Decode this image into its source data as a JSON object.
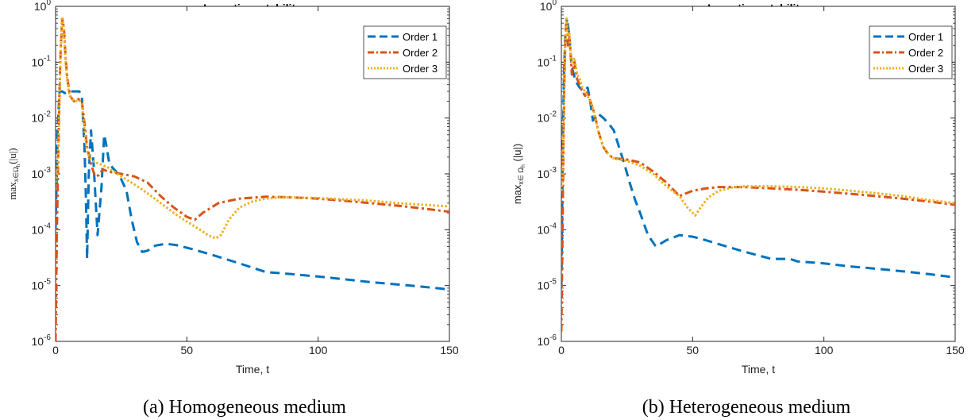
{
  "chart_data": [
    {
      "type": "line",
      "title": "Long time stability",
      "xlabel": "Time, t",
      "ylabel": "max_{x∈Ω_h}(|u|)",
      "xlim": [
        0,
        150
      ],
      "ylim": [
        1e-06,
        1
      ],
      "yscale": "log",
      "xticks": [
        "0",
        "50",
        "100",
        "150"
      ],
      "yticks": [
        "10-6",
        "10-5",
        "10-4",
        "10-3",
        "10-2",
        "10-1",
        "100"
      ],
      "legend": "top-right",
      "caption": "(a) Homogeneous medium",
      "series": [
        {
          "name": "Order 1",
          "color": "#0072BD",
          "style": "dashed",
          "x": [
            0,
            0.8,
            1.5,
            2.5,
            3.5,
            5,
            7,
            9,
            10,
            11,
            11.5,
            12,
            12.6,
            13.5,
            14.5,
            16,
            17.5,
            18.5,
            19.2,
            20.5,
            23,
            25,
            27,
            29,
            31,
            33,
            35,
            38,
            42,
            46,
            52,
            60,
            70,
            80,
            90,
            100,
            110,
            120,
            130,
            140,
            150
          ],
          "y": [
            0.0001,
            0.006,
            0.03,
            0.03,
            0.028,
            0.03,
            0.03,
            0.03,
            0.025,
            0.003,
            0.0005,
            3e-05,
            0.0009,
            0.006,
            0.0015,
            8e-05,
            0.0006,
            0.005,
            0.0035,
            0.0015,
            0.0011,
            0.0008,
            0.0005,
            0.00015,
            6e-05,
            4e-05,
            4.2e-05,
            5.2e-05,
            5.6e-05,
            5.3e-05,
            4.5e-05,
            3.5e-05,
            2.5e-05,
            1.75e-05,
            1.6e-05,
            1.45e-05,
            1.3e-05,
            1.15e-05,
            1.05e-05,
            9.5e-06,
            8.5e-06
          ]
        },
        {
          "name": "Order 2",
          "color": "#D95319",
          "style": "dashdot",
          "x": [
            0,
            0.5,
            1,
            1.6,
            2,
            2.6,
            3.2,
            3.8,
            4.5,
            5.5,
            7,
            8.5,
            10,
            11,
            12,
            13.5,
            15,
            16.5,
            18,
            20,
            25,
            30,
            35,
            40,
            45,
            50,
            53,
            56,
            62,
            70,
            80,
            90,
            100,
            110,
            120,
            130,
            140,
            150
          ],
          "y": [
            1e-06,
            0.0001,
            0.002,
            0.05,
            0.2,
            0.6,
            0.4,
            0.12,
            0.05,
            0.025,
            0.02,
            0.022,
            0.02,
            0.008,
            0.003,
            0.0015,
            0.0009,
            0.00095,
            0.0012,
            0.0011,
            0.001,
            0.0009,
            0.0007,
            0.0004,
            0.00025,
            0.00017,
            0.00015,
            0.0002,
            0.0003,
            0.00036,
            0.00039,
            0.00038,
            0.00036,
            0.00033,
            0.0003,
            0.00027,
            0.00024,
            0.00021
          ]
        },
        {
          "name": "Order 3",
          "color": "#EDB120",
          "style": "dotted",
          "x": [
            0,
            0.6,
            1.2,
            1.8,
            2.4,
            3,
            3.6,
            4.2,
            5,
            6,
            7.5,
            9,
            10,
            11,
            12,
            13.5,
            15,
            17,
            20,
            25,
            30,
            35,
            40,
            45,
            50,
            55,
            58,
            61,
            63,
            66,
            70,
            75,
            80,
            85,
            90,
            100,
            110,
            120,
            130,
            140,
            150
          ],
          "y": [
            0.0007,
            0.001,
            0.005,
            0.1,
            0.6,
            0.5,
            0.15,
            0.06,
            0.03,
            0.022,
            0.02,
            0.021,
            0.018,
            0.006,
            0.0025,
            0.0018,
            0.0016,
            0.0015,
            0.0013,
            0.0009,
            0.00065,
            0.00045,
            0.0003,
            0.0002,
            0.00014,
            0.0001,
            8e-05,
            7e-05,
            8e-05,
            0.00015,
            0.00025,
            0.00032,
            0.00036,
            0.00038,
            0.00038,
            0.00037,
            0.00035,
            0.00033,
            0.0003,
            0.00028,
            0.00026
          ]
        }
      ]
    },
    {
      "type": "line",
      "title": "Long time stability",
      "xlabel": "Time, t",
      "ylabel": "max_{x∈Ω_h}(|u|)",
      "xlim": [
        0,
        150
      ],
      "ylim": [
        1e-06,
        1
      ],
      "yscale": "log",
      "xticks": [
        "0",
        "50",
        "100",
        "150"
      ],
      "yticks": [
        "10-6",
        "10-5",
        "10-4",
        "10-3",
        "10-2",
        "10-1",
        "100"
      ],
      "legend": "top-right",
      "caption": "(b) Heterogeneous medium",
      "series": [
        {
          "name": "Order 1",
          "color": "#0072BD",
          "style": "dashed",
          "x": [
            0,
            0.5,
            1,
            1.5,
            2.2,
            3,
            4,
            5.5,
            7,
            8.5,
            10,
            11,
            12,
            14,
            16,
            18,
            20,
            22,
            24,
            26,
            28,
            30,
            33,
            36,
            40,
            45,
            50,
            55,
            60,
            70,
            80,
            85,
            87,
            90,
            100,
            110,
            120,
            130,
            140,
            150
          ],
          "y": [
            1e-05,
            0.002,
            0.06,
            0.3,
            0.6,
            0.3,
            0.08,
            0.045,
            0.035,
            0.03,
            0.035,
            0.02,
            0.009,
            0.012,
            0.01,
            0.008,
            0.006,
            0.003,
            0.0015,
            0.0007,
            0.00035,
            0.0002,
            8e-05,
            5e-05,
            6.5e-05,
            8e-05,
            7.5e-05,
            6.5e-05,
            5.5e-05,
            4e-05,
            3e-05,
            3e-05,
            3e-05,
            2.7e-05,
            2.5e-05,
            2.2e-05,
            2e-05,
            1.8e-05,
            1.6e-05,
            1.4e-05
          ]
        },
        {
          "name": "Order 2",
          "color": "#D95319",
          "style": "dashdot",
          "x": [
            0,
            0.5,
            1,
            1.5,
            2,
            2.5,
            3,
            3.5,
            4,
            5,
            6,
            7,
            8,
            9,
            10,
            11,
            12,
            13,
            14,
            16,
            18,
            20,
            25,
            30,
            35,
            40,
            45,
            50,
            55,
            60,
            70,
            80,
            90,
            100,
            110,
            120,
            130,
            140,
            150
          ],
          "y": [
            1.5e-06,
            0.0002,
            0.02,
            0.3,
            0.6,
            0.2,
            0.3,
            0.15,
            0.06,
            0.1,
            0.05,
            0.04,
            0.03,
            0.025,
            0.03,
            0.02,
            0.015,
            0.01,
            0.006,
            0.003,
            0.0022,
            0.0019,
            0.0018,
            0.0016,
            0.0011,
            0.0007,
            0.0004,
            0.0005,
            0.00055,
            0.00058,
            0.00058,
            0.00055,
            0.00052,
            0.00048,
            0.00044,
            0.0004,
            0.00036,
            0.00032,
            0.00028
          ]
        },
        {
          "name": "Order 3",
          "color": "#EDB120",
          "style": "dotted",
          "x": [
            0,
            0.5,
            1,
            1.5,
            2,
            2.5,
            3,
            3.5,
            4,
            5,
            6,
            7,
            8,
            9,
            10,
            11,
            12,
            13,
            14,
            16,
            18,
            20,
            25,
            30,
            35,
            40,
            45,
            48,
            51,
            53,
            56,
            60,
            65,
            70,
            80,
            90,
            100,
            110,
            120,
            130,
            140,
            150
          ],
          "y": [
            0.0005,
            0.001,
            0.01,
            0.2,
            0.6,
            0.3,
            0.35,
            0.15,
            0.1,
            0.12,
            0.06,
            0.05,
            0.035,
            0.03,
            0.025,
            0.02,
            0.015,
            0.01,
            0.006,
            0.003,
            0.0022,
            0.0019,
            0.0017,
            0.0014,
            0.001,
            0.0006,
            0.0004,
            0.00025,
            0.00018,
            0.00025,
            0.00038,
            0.0005,
            0.00057,
            0.0006,
            0.0006,
            0.00058,
            0.00055,
            0.0005,
            0.00045,
            0.0004,
            0.00034,
            0.0003
          ]
        }
      ]
    }
  ]
}
